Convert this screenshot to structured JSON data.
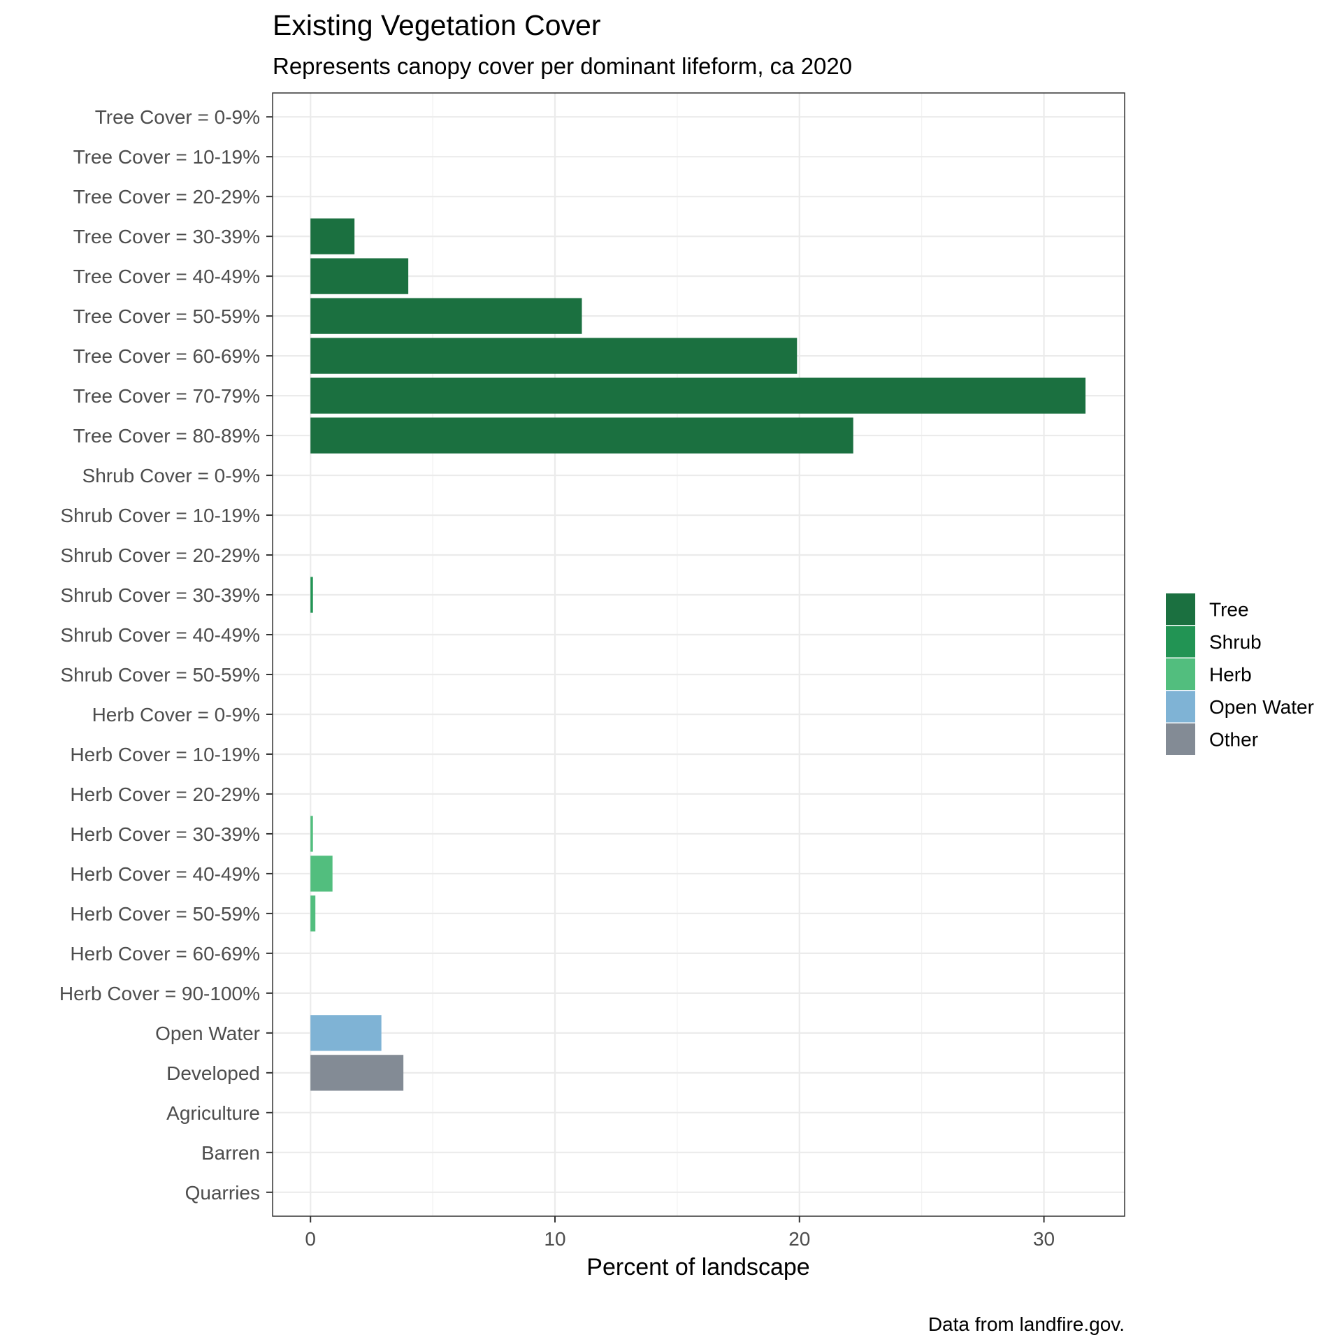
{
  "chart_data": {
    "type": "bar",
    "orientation": "horizontal",
    "title": "Existing Vegetation Cover",
    "subtitle": "Represents canopy cover per dominant lifeform, ca 2020",
    "xlabel": "Percent of landscape",
    "ylabel": "",
    "caption": "Data from landfire.gov.",
    "xlim": [
      -1.55,
      33.3
    ],
    "xticks": [
      0,
      10,
      20,
      30
    ],
    "grid": true,
    "legend_position": "right",
    "legend": [
      {
        "name": "Tree",
        "color": "#1b7040"
      },
      {
        "name": "Shrub",
        "color": "#229454"
      },
      {
        "name": "Herb",
        "color": "#52be7e"
      },
      {
        "name": "Open Water",
        "color": "#7fb3d5"
      },
      {
        "name": "Other",
        "color": "#838b95"
      }
    ],
    "categories": [
      "Tree Cover = 0-9%",
      "Tree Cover = 10-19%",
      "Tree Cover = 20-29%",
      "Tree Cover = 30-39%",
      "Tree Cover = 40-49%",
      "Tree Cover = 50-59%",
      "Tree Cover = 60-69%",
      "Tree Cover = 70-79%",
      "Tree Cover = 80-89%",
      "Shrub Cover = 0-9%",
      "Shrub Cover = 10-19%",
      "Shrub Cover = 20-29%",
      "Shrub Cover = 30-39%",
      "Shrub Cover = 40-49%",
      "Shrub Cover = 50-59%",
      "Herb Cover = 0-9%",
      "Herb Cover = 10-19%",
      "Herb Cover = 20-29%",
      "Herb Cover = 30-39%",
      "Herb Cover = 40-49%",
      "Herb Cover = 50-59%",
      "Herb Cover = 60-69%",
      "Herb Cover = 90-100%",
      "Open Water",
      "Developed",
      "Agriculture",
      "Barren",
      "Quarries"
    ],
    "values": [
      0,
      0,
      0,
      1.8,
      4.0,
      11.1,
      19.9,
      31.7,
      22.2,
      0,
      0,
      0,
      0.1,
      0,
      0,
      0,
      0,
      0,
      0.1,
      0.9,
      0.2,
      0,
      0,
      2.9,
      3.8,
      0,
      0,
      0
    ],
    "groups": [
      "Tree",
      "Tree",
      "Tree",
      "Tree",
      "Tree",
      "Tree",
      "Tree",
      "Tree",
      "Tree",
      "Shrub",
      "Shrub",
      "Shrub",
      "Shrub",
      "Shrub",
      "Shrub",
      "Herb",
      "Herb",
      "Herb",
      "Herb",
      "Herb",
      "Herb",
      "Herb",
      "Herb",
      "Open Water",
      "Other",
      "Other",
      "Other",
      "Other"
    ]
  }
}
